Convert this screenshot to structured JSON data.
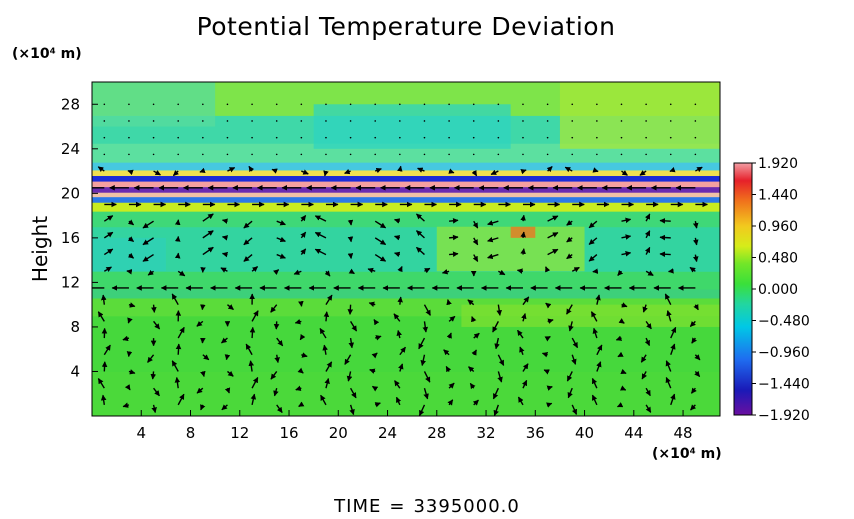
{
  "chart_data": {
    "type": "heatmap",
    "title": "Potential Temperature Deviation",
    "ylabel": "Height",
    "y_unit": "(×10⁴ m)",
    "x_unit": "(×10⁴ m)",
    "xlim": [
      0,
      51
    ],
    "ylim": [
      0,
      30
    ],
    "x_ticks": [
      "4",
      "8",
      "12",
      "16",
      "20",
      "24",
      "28",
      "32",
      "36",
      "40",
      "44",
      "48"
    ],
    "x_tick_values": [
      4,
      8,
      12,
      16,
      20,
      24,
      28,
      32,
      36,
      40,
      44,
      48
    ],
    "y_ticks": [
      "4",
      "8",
      "12",
      "16",
      "20",
      "24",
      "28"
    ],
    "y_tick_values": [
      4,
      8,
      12,
      16,
      20,
      24,
      28
    ],
    "colorbar": {
      "min": -1.92,
      "max": 1.92,
      "labels": [
        "1.920",
        "1.440",
        "0.960",
        "0.480",
        "0.000",
        "−0.480",
        "−0.960",
        "−1.440",
        "−1.920"
      ],
      "values": [
        1.92,
        1.44,
        0.96,
        0.48,
        0.0,
        -0.48,
        -0.96,
        -1.44,
        -1.92
      ]
    },
    "field_description": "background near 0.000 (green); cyan band ~12-17 (about -0.3); strong alternating positive/negative stratified bands near height 19-23; light green/yellow upper region ~24-30 (about 0.1-0.3)",
    "vector_field": "wind arrows overlay; strong westward flow at height ~20 and ~11, eastward at ~15 and ~18, circulation cells below 10"
  },
  "time": {
    "label": "TIME",
    "equals": "=",
    "value": "3395000.0"
  }
}
